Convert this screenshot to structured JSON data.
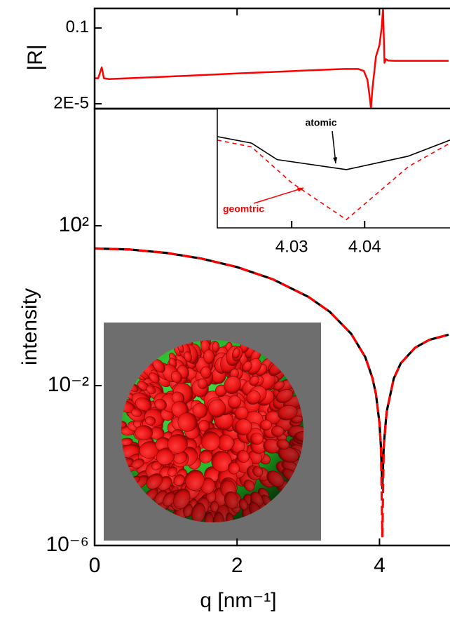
{
  "chart_data": [
    {
      "type": "line",
      "xlabel": "q [nm⁻¹]",
      "ylabel": "intensity",
      "ylog": true,
      "xlim": [
        0,
        4.99
      ],
      "ylim": [
        1e-06,
        85000
      ],
      "xticks": [
        0,
        2,
        4
      ],
      "yticks": [
        {
          "value": 100,
          "label": "10²"
        },
        {
          "value": 0.01,
          "label": "10⁻²"
        },
        {
          "value": 1e-06,
          "label": "10⁻⁶"
        }
      ],
      "x": [
        0,
        0.5,
        1,
        1.5,
        2,
        2.5,
        3,
        3.3,
        3.6,
        3.8,
        3.9,
        3.95,
        4.0,
        4.02,
        4.04,
        4.06,
        4.1,
        4.2,
        4.3,
        4.5,
        4.7,
        4.97
      ],
      "series": [
        {
          "color": "#000000",
          "dash": false,
          "values": [
            27,
            25.4,
            21.0,
            15.1,
            9.24,
            4.6,
            1.67,
            0.708,
            0.201,
            0.0519,
            0.0157,
            0.0062,
            0.00114,
            0.0003,
            2.7e-05,
            0.00032,
            0.00218,
            0.015,
            0.0365,
            0.0888,
            0.14,
            0.188
          ]
        },
        {
          "color": "#ff0000",
          "dash": true,
          "values": [
            27,
            25.4,
            21.0,
            15.1,
            9.24,
            4.6,
            1.67,
            0.708,
            0.201,
            0.0519,
            0.0157,
            0.0062,
            0.00114,
            0.00028,
            1.7e-06,
            0.00029,
            0.00218,
            0.015,
            0.0365,
            0.0888,
            0.14,
            0.188
          ]
        }
      ]
    },
    {
      "type": "line",
      "ylabel": "|R|",
      "ylog": true,
      "xlim": [
        0,
        4.99
      ],
      "ylim": [
        1.15e-05,
        0.9
      ],
      "yticks": [
        0.1,
        {
          "value": 2e-05,
          "label": "2E-5"
        }
      ],
      "x": [
        0,
        0.05,
        0.1,
        0.13,
        0.2,
        1,
        2,
        3,
        3.5,
        3.7,
        3.78,
        3.83,
        3.86,
        3.88,
        3.9,
        3.95,
        4.0,
        4.03,
        4.05,
        4.07,
        4.09,
        4.12,
        4.2,
        4.5,
        4.97
      ],
      "series": [
        {
          "color": "#ff0000",
          "dash": false,
          "values": [
            0.00035,
            0.00035,
            0.0012,
            0.00035,
            0.00032,
            0.00042,
            0.0006,
            0.00085,
            0.001,
            0.001,
            0.0008,
            0.0003,
            5e-05,
            1.2e-05,
            0.0001,
            0.004,
            0.015,
            0.1,
            0.9,
            0.002,
            0.003,
            0.0026,
            0.0025,
            0.0025,
            0.0025
          ]
        }
      ]
    },
    {
      "type": "line",
      "ylog": true,
      "xlim": [
        4.0198,
        4.0517
      ],
      "ylim": [
        1e-06,
        0.0021
      ],
      "xticks": [
        4.03,
        4.04
      ],
      "series": [
        {
          "name": "atomic",
          "color": "#000000",
          "dash": false,
          "x": [
            4.0198,
            4.0245,
            4.028,
            4.0375,
            4.046,
            4.0517
          ],
          "values": [
            0.00035,
            0.00023,
            8e-05,
            4.2e-05,
            0.0001,
            0.00028
          ]
        },
        {
          "name": "geomtric",
          "color": "#ff0000",
          "dash": true,
          "x": [
            4.0198,
            4.0245,
            4.03,
            4.0375,
            4.046,
            4.0517
          ],
          "values": [
            0.00028,
            0.00018,
            1.8e-05,
            1.7e-06,
            5.1e-05,
            0.00023
          ]
        }
      ]
    }
  ]
}
